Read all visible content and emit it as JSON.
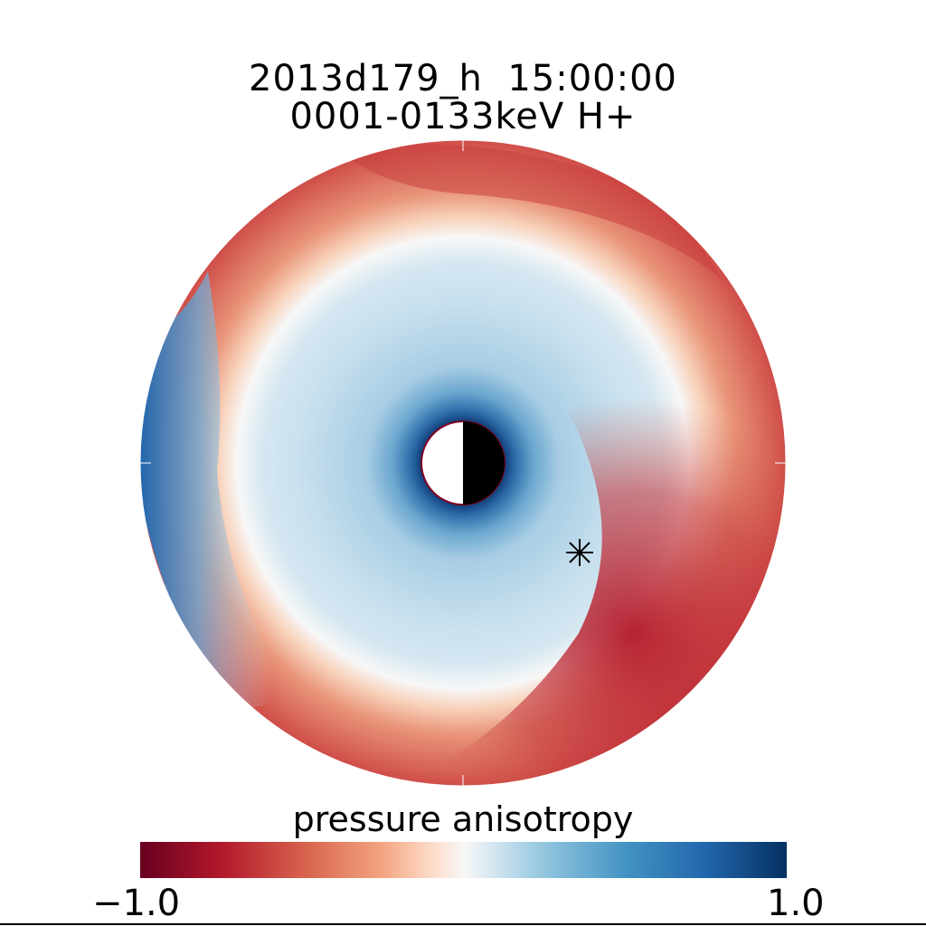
{
  "chart_data": {
    "type": "heatmap",
    "title": "2013d179_h  15:00:00",
    "subtitle": "0001-0133keV H+",
    "colorbar": {
      "label": "pressure anisotropy",
      "min": -1.0,
      "max": 1.0,
      "min_label": "−1.0",
      "max_label": "1.0",
      "colormap": "red-white-blue (red = -1.0, blue = 1.0)"
    },
    "map": {
      "projection": "polar equatorial plane",
      "regions": [
        {
          "description": "dayside outer ring / dusk-midnight sector",
          "anisotropy": -0.65
        },
        {
          "description": "inner region around Earth",
          "anisotropy": 0.25
        },
        {
          "description": "near-Earth ring",
          "anisotropy": 0.7
        },
        {
          "description": "dawn-side outer edge",
          "anisotropy": 0.75
        }
      ],
      "marker": "asterisk"
    },
    "colors": {
      "negative_extreme": "#67001f",
      "neutral": "#f7f7f7",
      "positive_extreme": "#053061"
    }
  }
}
